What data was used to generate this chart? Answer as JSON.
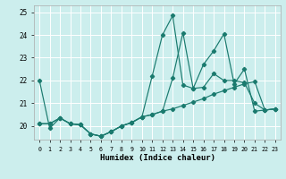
{
  "xlabel": "Humidex (Indice chaleur)",
  "background_color": "#cceeed",
  "line_color": "#1a7a6e",
  "grid_color": "#ffffff",
  "xlim": [
    -0.5,
    23.5
  ],
  "ylim": [
    19.4,
    25.3
  ],
  "yticks": [
    20,
    21,
    22,
    23,
    24,
    25
  ],
  "xtick_labels": [
    "0",
    "1",
    "2",
    "3",
    "4",
    "5",
    "6",
    "7",
    "8",
    "9",
    "10",
    "11",
    "12",
    "13",
    "14",
    "15",
    "16",
    "17",
    "18",
    "19",
    "20",
    "21",
    "22",
    "23"
  ],
  "line1_x": [
    0,
    1,
    2,
    3,
    4,
    5,
    6,
    7,
    8,
    9,
    10,
    11,
    12,
    13,
    14,
    15,
    16,
    17,
    18,
    19,
    20,
    21,
    22,
    23
  ],
  "line1_y": [
    22.0,
    19.9,
    20.35,
    20.1,
    20.05,
    19.65,
    19.55,
    19.75,
    20.0,
    20.15,
    20.4,
    22.2,
    24.0,
    24.85,
    21.8,
    21.65,
    21.7,
    22.3,
    22.0,
    22.0,
    21.9,
    21.0,
    20.7,
    20.75
  ],
  "line2_x": [
    0,
    1,
    2,
    3,
    4,
    5,
    6,
    7,
    8,
    9,
    10,
    11,
    12,
    13,
    14,
    15,
    16,
    17,
    18,
    19,
    20,
    21,
    22,
    23
  ],
  "line2_y": [
    20.1,
    20.1,
    20.35,
    20.1,
    20.05,
    19.65,
    19.55,
    19.75,
    20.0,
    20.15,
    20.4,
    20.5,
    20.65,
    20.75,
    20.9,
    21.05,
    21.2,
    21.4,
    21.55,
    21.7,
    21.85,
    21.95,
    20.7,
    20.75
  ],
  "line3_x": [
    0,
    1,
    2,
    3,
    4,
    5,
    6,
    7,
    8,
    9,
    10,
    11,
    12,
    13,
    14,
    15,
    16,
    17,
    18,
    19,
    20,
    21,
    22,
    23
  ],
  "line3_y": [
    20.1,
    20.1,
    20.35,
    20.1,
    20.05,
    19.65,
    19.55,
    19.75,
    20.0,
    20.15,
    20.4,
    20.5,
    20.65,
    22.1,
    24.1,
    21.65,
    22.7,
    23.3,
    24.05,
    21.85,
    22.5,
    20.65,
    20.7,
    20.75
  ]
}
